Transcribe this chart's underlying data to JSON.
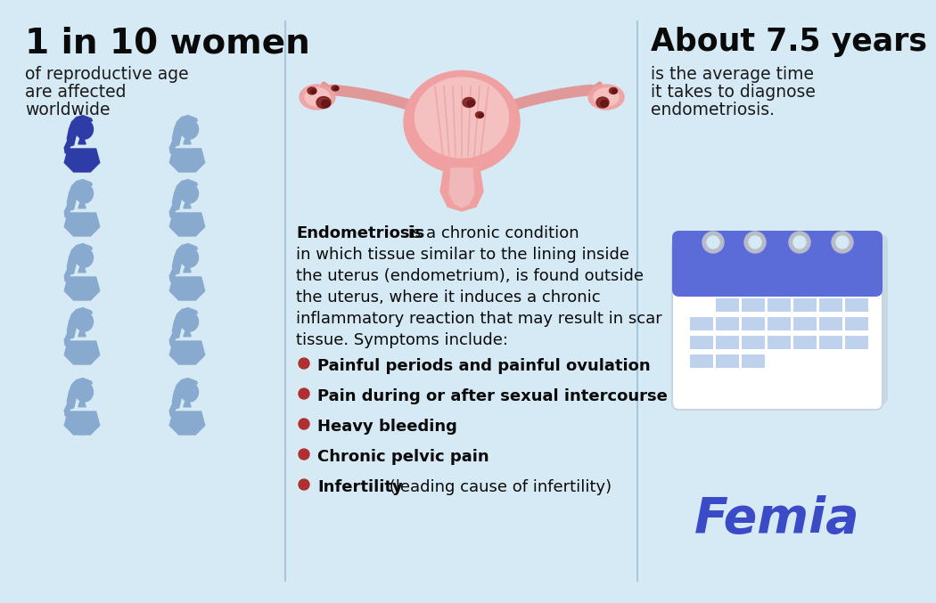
{
  "bg_color": "#d6eaf5",
  "divider_color": "#a8c8e0",
  "title1": "1 in 10 women",
  "subtitle1": "of reproductive age\nare affected\nworldwide",
  "title2": "About 7.5 years",
  "subtitle2": "is the average time\nit takes to diagnose\nendometriosis.",
  "brand": "Femia",
  "brand_color": "#3b4bc8",
  "title_color": "#0a0a0a",
  "subtitle_color": "#1a1a1a",
  "woman_dark_color": "#2e3ca8",
  "woman_light_color": "#88aace",
  "bullet_color": "#b03030",
  "desc_bold": "Endometriosis",
  "desc_rest": " is a chronic condition\nin which tissue similar to the lining inside\nthe uterus (endometrium), is found outside\nthe uterus, where it induces a chronic\ninflammatory reaction that may result in scar\ntissue. Symptoms include:",
  "symptoms": [
    [
      "Painful periods and painful ovulation",
      true
    ],
    [
      "Pain during or after sexual intercourse",
      true
    ],
    [
      "Heavy bleeding",
      true
    ],
    [
      "Chronic pelvic pain",
      true
    ],
    [
      "Infertility",
      true,
      " (leading cause of infertility)",
      false
    ]
  ],
  "calendar_header_color": "#5b6cd9",
  "calendar_body_color": "#ffffff",
  "calendar_cell_color": "#a8c4e8",
  "calendar_ring_color": "#b8bcc8",
  "uterus_outer": "#f0a0a0",
  "uterus_inner": "#f5c0c0",
  "uterus_cervix": "#e08888",
  "uterus_tube": "#e09898",
  "endo_spot": "#7a1a1a"
}
